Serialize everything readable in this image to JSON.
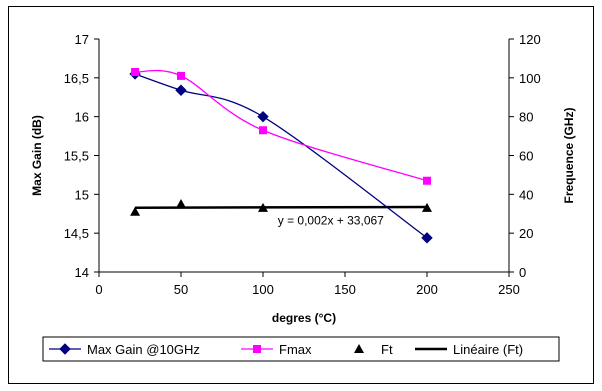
{
  "chart_data": {
    "type": "line",
    "xlabel": "degres (°C)",
    "ylabel": "Max Gain (dB)",
    "y2label": "Frequence (GHz)",
    "xlim": [
      0,
      250
    ],
    "ylim": [
      14,
      17
    ],
    "y2lim": [
      0,
      120
    ],
    "xticks": [
      "0",
      "50",
      "100",
      "150",
      "200",
      "250"
    ],
    "yticks": [
      "14",
      "14,5",
      "15",
      "15,5",
      "16",
      "16,5",
      "17"
    ],
    "y2ticks": [
      "0",
      "20",
      "40",
      "60",
      "80",
      "100",
      "120"
    ],
    "grid": false,
    "legend_position": "bottom",
    "series": [
      {
        "name": "Max Gain @10GHz",
        "axis": "left",
        "color": "#000080",
        "marker": "diamond",
        "x": [
          22,
          50,
          100,
          200
        ],
        "y": [
          16.55,
          16.34,
          16.0,
          14.44
        ]
      },
      {
        "name": "Fmax",
        "axis": "right",
        "color": "#ff00ff",
        "marker": "square",
        "x": [
          22,
          50,
          100,
          200
        ],
        "y": [
          103,
          101,
          73,
          47
        ]
      },
      {
        "name": "Ft",
        "axis": "right",
        "color": "#000000",
        "marker": "triangle",
        "x": [
          22,
          50,
          100,
          200
        ],
        "y": [
          31,
          35,
          33,
          33
        ]
      }
    ],
    "trendline": {
      "name": "Linéaire (Ft)",
      "color": "#000000",
      "slope": 0.002,
      "intercept": 33.067,
      "x_range": [
        22,
        200
      ]
    },
    "annotation": "y = 0,002x + 33,067"
  }
}
